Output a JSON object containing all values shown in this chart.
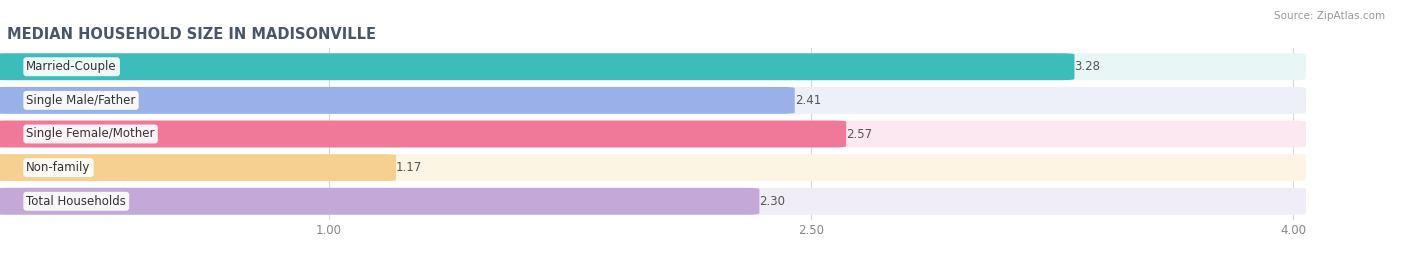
{
  "title": "MEDIAN HOUSEHOLD SIZE IN MADISONVILLE",
  "source": "Source: ZipAtlas.com",
  "categories": [
    "Married-Couple",
    "Single Male/Father",
    "Single Female/Mother",
    "Non-family",
    "Total Households"
  ],
  "values": [
    3.28,
    2.41,
    2.57,
    1.17,
    2.3
  ],
  "bar_colors": [
    "#3dbcbc",
    "#9ab0e8",
    "#f07898",
    "#f5d090",
    "#c4a8d8"
  ],
  "bar_bg_colors": [
    "#e8f6f6",
    "#edf0f8",
    "#fce8f0",
    "#fdf5e4",
    "#f0ecf8"
  ],
  "xlim_start": 0.0,
  "xlim_end": 4.22,
  "xaxis_max": 4.0,
  "xticks": [
    1.0,
    2.5,
    4.0
  ],
  "xtick_labels": [
    "1.00",
    "2.50",
    "4.00"
  ],
  "title_fontsize": 10.5,
  "label_fontsize": 8.5,
  "value_fontsize": 8.5,
  "bar_height": 0.72,
  "bar_gap": 0.28,
  "title_color": "#4a5568",
  "label_color": "#333333",
  "value_color": "#555555",
  "source_color": "#999999",
  "grid_color": "#d8d8d8",
  "bg_color": "#ffffff"
}
